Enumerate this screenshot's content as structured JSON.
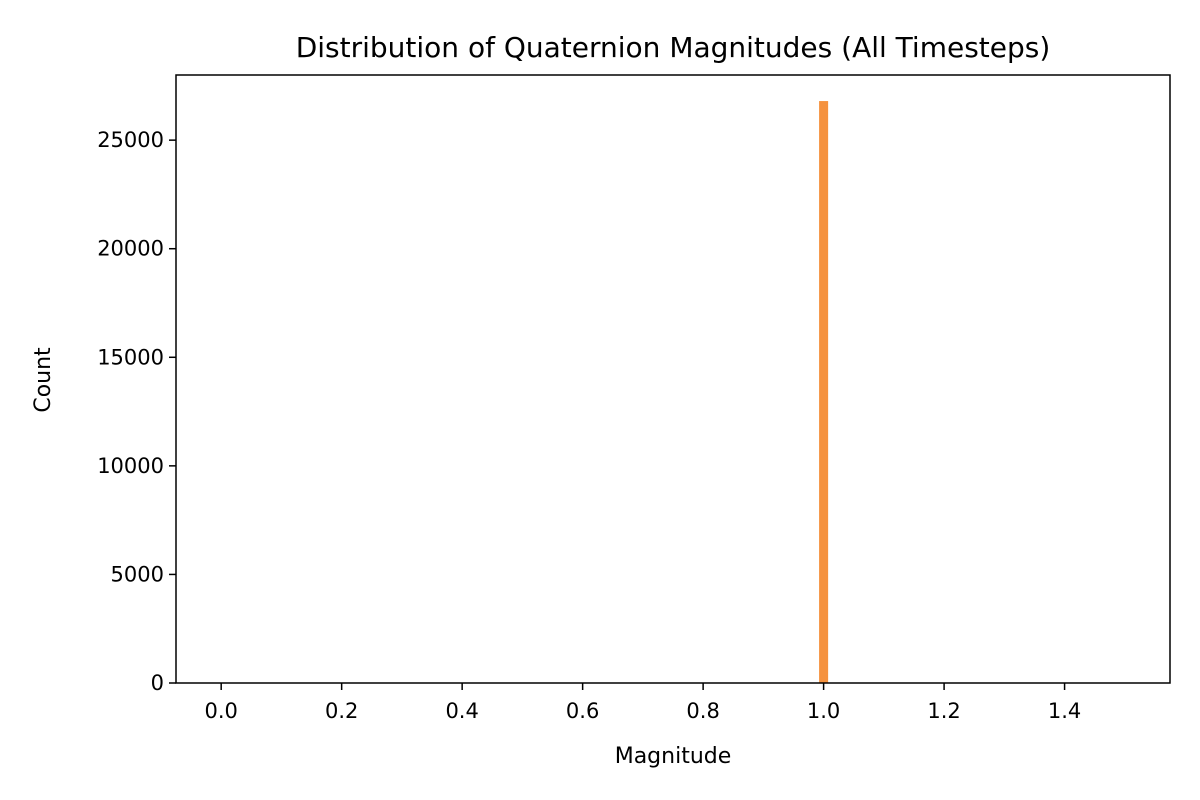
{
  "chart_data": {
    "type": "bar",
    "title": "Distribution of Quaternion Magnitudes (All Timesteps)",
    "xlabel": "Magnitude",
    "ylabel": "Count",
    "xlim": [
      -0.075,
      1.575
    ],
    "ylim": [
      0,
      28000
    ],
    "xticks": [
      0.0,
      0.2,
      0.4,
      0.6,
      0.8,
      1.0,
      1.2,
      1.4
    ],
    "xtick_labels": [
      "0.0",
      "0.2",
      "0.4",
      "0.6",
      "0.8",
      "1.0",
      "1.2",
      "1.4"
    ],
    "yticks": [
      0,
      5000,
      10000,
      15000,
      20000,
      25000
    ],
    "ytick_labels": [
      "0",
      "5000",
      "10000",
      "15000",
      "20000",
      "25000"
    ],
    "grid": false,
    "bar_color": "#f5923e",
    "bins": [
      {
        "x0": 0.9925,
        "x1": 1.0075,
        "count": 26800
      }
    ]
  }
}
